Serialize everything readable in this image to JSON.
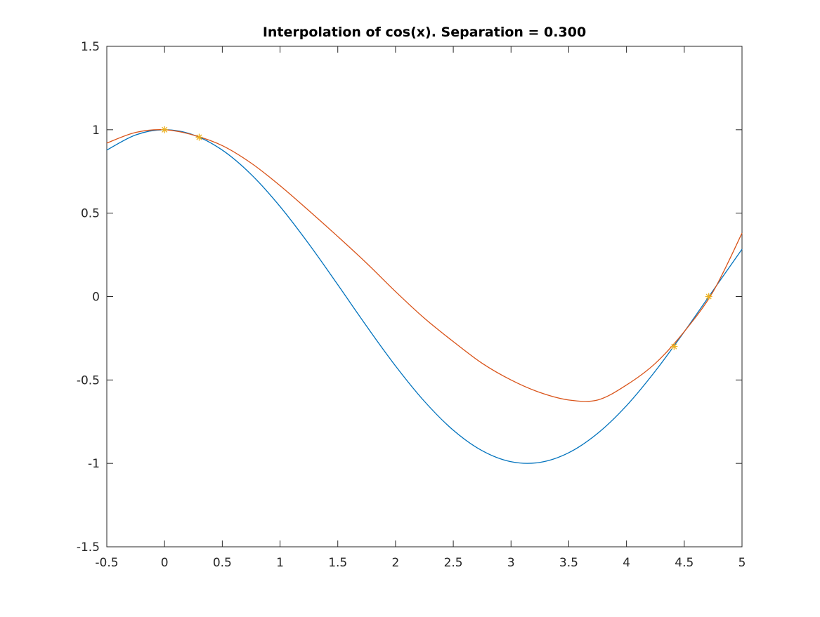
{
  "chart_data": {
    "type": "line",
    "title": "Interpolation of cos(x). Separation = 0.300",
    "xlabel": "",
    "ylabel": "",
    "xlim": [
      -0.5,
      5
    ],
    "ylim": [
      -1.5,
      1.5
    ],
    "xticks": [
      -0.5,
      0,
      0.5,
      1,
      1.5,
      2,
      2.5,
      3,
      3.5,
      4,
      4.5,
      5
    ],
    "xtick_labels": [
      "-0.5",
      "0",
      "0.5",
      "1",
      "1.5",
      "2",
      "2.5",
      "3",
      "3.5",
      "4",
      "4.5",
      "5"
    ],
    "yticks": [
      -1.5,
      -1,
      -0.5,
      0,
      0.5,
      1,
      1.5
    ],
    "ytick_labels": [
      "-1.5",
      "-1",
      "-0.5",
      "0",
      "0.5",
      "1",
      "1.5"
    ],
    "grid": false,
    "legend": "none",
    "series": [
      {
        "color": "#0072bd",
        "x": [
          -0.5,
          -0.25,
          0,
          0.25,
          0.5,
          0.75,
          1,
          1.25,
          1.5,
          1.75,
          2,
          2.25,
          2.5,
          2.75,
          3,
          3.25,
          3.5,
          3.75,
          4,
          4.25,
          4.5,
          4.75,
          5
        ],
        "y": [
          0.878,
          0.969,
          1.0,
          0.969,
          0.878,
          0.732,
          0.54,
          0.315,
          0.071,
          -0.178,
          -0.416,
          -0.628,
          -0.801,
          -0.924,
          -0.99,
          -0.994,
          -0.936,
          -0.82,
          -0.654,
          -0.446,
          -0.211,
          0.037,
          0.284
        ]
      },
      {
        "color": "#d95319",
        "x": [
          -0.5,
          -0.25,
          0,
          0.25,
          0.5,
          0.75,
          1,
          1.25,
          1.5,
          1.75,
          2,
          2.25,
          2.5,
          2.75,
          3,
          3.25,
          3.5,
          3.75,
          4,
          4.25,
          4.5,
          4.75,
          5
        ],
        "y": [
          0.92,
          0.984,
          1.0,
          0.968,
          0.905,
          0.8,
          0.665,
          0.515,
          0.36,
          0.2,
          0.03,
          -0.13,
          -0.27,
          -0.4,
          -0.5,
          -0.575,
          -0.62,
          -0.62,
          -0.53,
          -0.4,
          -0.21,
          0.03,
          0.38
        ]
      },
      {
        "color": "#edb120",
        "marker": "asterisk",
        "x": [
          0,
          0.3,
          4.412,
          4.712
        ],
        "y": [
          1.0,
          0.955,
          -0.299,
          0.0
        ]
      }
    ]
  }
}
